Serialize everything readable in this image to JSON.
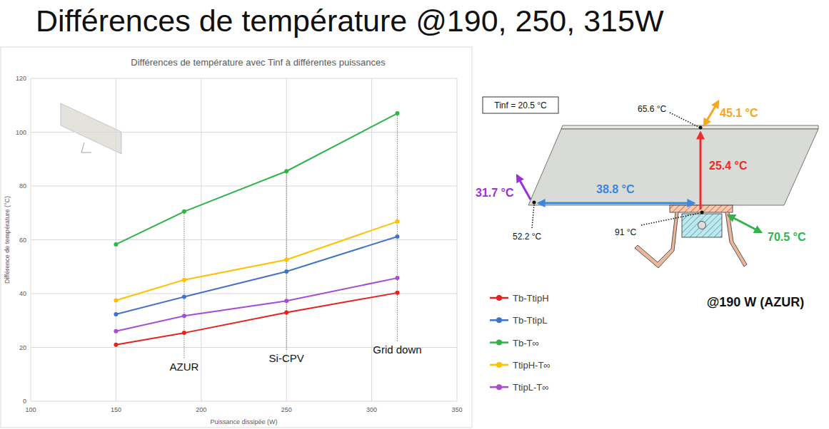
{
  "header": {
    "title": "Différences de température @190, 250, 315W"
  },
  "chart_data": {
    "type": "line",
    "title": "Différences de température avec Tinf à différentes puissances",
    "x_label": "Puissance dissipée (W)",
    "y_label": "Différence de température (°C)",
    "x": [
      150,
      190,
      250,
      315
    ],
    "series": [
      {
        "name": "Tb-TtipH",
        "color": "#e8201f",
        "marker": "circle",
        "values": [
          21,
          25.4,
          33,
          40.3
        ]
      },
      {
        "name": "Tb-TtipL",
        "color": "#4472c4",
        "marker": "circle",
        "values": [
          32.3,
          38.8,
          48.2,
          61.2
        ]
      },
      {
        "name": "Tb-T∞",
        "color": "#2fb34a",
        "marker": "circle",
        "values": [
          58.3,
          70.5,
          85.5,
          107
        ]
      },
      {
        "name": "TtipH-T∞",
        "color": "#ffc000",
        "marker": "circle",
        "values": [
          37.5,
          45.1,
          52.6,
          66.8
        ]
      },
      {
        "name": "TtipL-T∞",
        "color": "#a64dcf",
        "marker": "circle",
        "values": [
          26,
          31.7,
          37.3,
          45.8
        ]
      }
    ],
    "annotations": [
      {
        "x": 190,
        "text": "AZUR"
      },
      {
        "x": 250,
        "text": "Si-CPV"
      },
      {
        "x": 315,
        "text": "Grid down"
      }
    ],
    "xlim": [
      100,
      350
    ],
    "xticks": [
      100,
      150,
      200,
      250,
      300,
      350
    ],
    "ylim": [
      0,
      120
    ],
    "yticks": [
      0,
      20,
      40,
      60,
      80,
      100,
      120
    ],
    "grid": true,
    "legend": "right"
  },
  "diagram": {
    "tinf": "Tinf = 20.5 °C",
    "caption": "@190 W (AZUR)",
    "labels": [
      "65.6 °C",
      "45.1 °C",
      "25.4 °C",
      "31.7 °C",
      "38.8 °C",
      "52.2 °C",
      "91 °C",
      "70.5 °C"
    ]
  }
}
